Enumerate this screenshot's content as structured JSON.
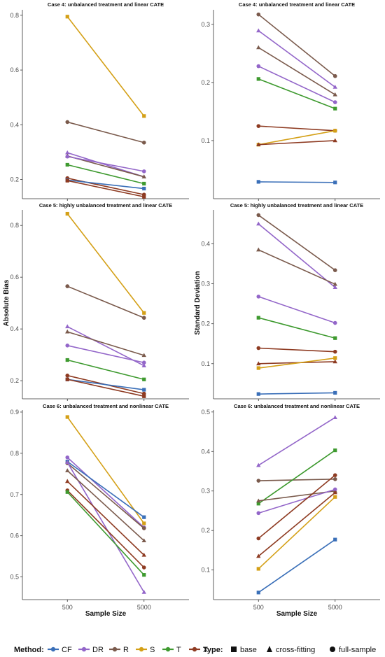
{
  "legend": {
    "method_title": "Method:",
    "type_title": "Type:",
    "methods": [
      {
        "name": "CF",
        "color": "#3a6fb8"
      },
      {
        "name": "DR",
        "color": "#9366c9"
      },
      {
        "name": "R",
        "color": "#7a5a4c"
      },
      {
        "name": "S",
        "color": "#d4a017"
      },
      {
        "name": "T",
        "color": "#3e9a2f"
      },
      {
        "name": "X",
        "color": "#8e3b22"
      }
    ],
    "types": [
      {
        "name": "base",
        "shape": "square"
      },
      {
        "name": "cross-fitting",
        "shape": "triangle"
      },
      {
        "name": "full-sample",
        "shape": "circle"
      }
    ]
  },
  "axes": {
    "x_title": "Sample Size",
    "left_y_title": "Absolute Bias",
    "right_y_title": "Standard Deviation"
  },
  "chart_data": [
    {
      "type": "line",
      "title": "Case 4: unbalanced treatment and linear CATE",
      "xlabel": "",
      "ylabel": "",
      "x": [
        "500",
        "5000"
      ],
      "ylim": [
        0.13,
        0.82
      ],
      "yticks": [
        0.2,
        0.4,
        0.6,
        0.8
      ],
      "grid": false,
      "series": [
        {
          "method": "S",
          "type": "base",
          "values": [
            0.795,
            0.432
          ]
        },
        {
          "method": "R",
          "type": "full-sample",
          "values": [
            0.41,
            0.335
          ]
        },
        {
          "method": "DR",
          "type": "cross-fitting",
          "values": [
            0.298,
            0.21
          ]
        },
        {
          "method": "R",
          "type": "cross-fitting",
          "values": [
            0.286,
            0.21
          ]
        },
        {
          "method": "DR",
          "type": "full-sample",
          "values": [
            0.284,
            0.23
          ]
        },
        {
          "method": "T",
          "type": "base",
          "values": [
            0.254,
            0.185
          ]
        },
        {
          "method": "X",
          "type": "full-sample",
          "values": [
            0.205,
            0.145
          ]
        },
        {
          "method": "CF",
          "type": "base",
          "values": [
            0.198,
            0.167
          ]
        },
        {
          "method": "X",
          "type": "base",
          "values": [
            0.196,
            0.137
          ]
        }
      ]
    },
    {
      "type": "line",
      "title": "Case 4: unbalanced treatment and linear CATE",
      "xlabel": "",
      "ylabel": "",
      "x": [
        "500",
        "5000"
      ],
      "ylim": [
        0.0,
        0.325
      ],
      "yticks": [
        0.1,
        0.2,
        0.3
      ],
      "grid": false,
      "series": [
        {
          "method": "R",
          "type": "full-sample",
          "values": [
            0.317,
            0.211
          ]
        },
        {
          "method": "DR",
          "type": "cross-fitting",
          "values": [
            0.289,
            0.192
          ]
        },
        {
          "method": "R",
          "type": "cross-fitting",
          "values": [
            0.26,
            0.179
          ]
        },
        {
          "method": "DR",
          "type": "full-sample",
          "values": [
            0.228,
            0.166
          ]
        },
        {
          "method": "T",
          "type": "base",
          "values": [
            0.206,
            0.155
          ]
        },
        {
          "method": "X",
          "type": "full-sample",
          "values": [
            0.125,
            0.117
          ]
        },
        {
          "method": "S",
          "type": "base",
          "values": [
            0.093,
            0.117
          ]
        },
        {
          "method": "X",
          "type": "cross-fitting",
          "values": [
            0.093,
            0.1
          ]
        },
        {
          "method": "CF",
          "type": "base",
          "values": [
            0.029,
            0.028
          ]
        }
      ]
    },
    {
      "type": "line",
      "title": "Case 5: highly unbalanced treatment and linear CATE",
      "xlabel": "",
      "ylabel": "Absolute Bias",
      "x": [
        "500",
        "5000"
      ],
      "ylim": [
        0.13,
        0.86
      ],
      "yticks": [
        0.2,
        0.4,
        0.6,
        0.8
      ],
      "grid": false,
      "series": [
        {
          "method": "S",
          "type": "base",
          "values": [
            0.845,
            0.462
          ]
        },
        {
          "method": "R",
          "type": "full-sample",
          "values": [
            0.565,
            0.443
          ]
        },
        {
          "method": "DR",
          "type": "cross-fitting",
          "values": [
            0.409,
            0.258
          ]
        },
        {
          "method": "R",
          "type": "cross-fitting",
          "values": [
            0.389,
            0.298
          ]
        },
        {
          "method": "DR",
          "type": "full-sample",
          "values": [
            0.336,
            0.27
          ]
        },
        {
          "method": "T",
          "type": "base",
          "values": [
            0.28,
            0.205
          ]
        },
        {
          "method": "X",
          "type": "full-sample",
          "values": [
            0.22,
            0.15
          ]
        },
        {
          "method": "CF",
          "type": "base",
          "values": [
            0.205,
            0.165
          ]
        },
        {
          "method": "X",
          "type": "base",
          "values": [
            0.205,
            0.14
          ]
        }
      ]
    },
    {
      "type": "line",
      "title": "Case 5: highly unbalanced treatment and linear CATE",
      "xlabel": "",
      "ylabel": "Standard Deviation",
      "x": [
        "500",
        "5000"
      ],
      "ylim": [
        0.012,
        0.485
      ],
      "yticks": [
        0.1,
        0.2,
        0.3,
        0.4
      ],
      "grid": false,
      "series": [
        {
          "method": "R",
          "type": "full-sample",
          "values": [
            0.472,
            0.334
          ]
        },
        {
          "method": "DR",
          "type": "cross-fitting",
          "values": [
            0.45,
            0.291
          ]
        },
        {
          "method": "R",
          "type": "cross-fitting",
          "values": [
            0.385,
            0.299
          ]
        },
        {
          "method": "DR",
          "type": "full-sample",
          "values": [
            0.268,
            0.202
          ]
        },
        {
          "method": "T",
          "type": "base",
          "values": [
            0.215,
            0.164
          ]
        },
        {
          "method": "X",
          "type": "full-sample",
          "values": [
            0.139,
            0.13
          ]
        },
        {
          "method": "X",
          "type": "cross-fitting",
          "values": [
            0.1,
            0.105
          ]
        },
        {
          "method": "S",
          "type": "base",
          "values": [
            0.089,
            0.114
          ]
        },
        {
          "method": "CF",
          "type": "base",
          "values": [
            0.024,
            0.027
          ]
        }
      ]
    },
    {
      "type": "line",
      "title": "Case 6: unbalanced treatment and nonlinear CATE",
      "xlabel": "Sample Size",
      "ylabel": "",
      "x": [
        "500",
        "5000"
      ],
      "ylim": [
        0.445,
        0.905
      ],
      "yticks": [
        0.5,
        0.6,
        0.7,
        0.8,
        0.9
      ],
      "grid": false,
      "series": [
        {
          "method": "S",
          "type": "base",
          "values": [
            0.888,
            0.63
          ]
        },
        {
          "method": "DR",
          "type": "full-sample",
          "values": [
            0.79,
            0.62
          ]
        },
        {
          "method": "CF",
          "type": "base",
          "values": [
            0.78,
            0.645
          ]
        },
        {
          "method": "R",
          "type": "full-sample",
          "values": [
            0.776,
            0.618
          ]
        },
        {
          "method": "DR",
          "type": "cross-fitting",
          "values": [
            0.778,
            0.463
          ]
        },
        {
          "method": "R",
          "type": "cross-fitting",
          "values": [
            0.758,
            0.588
          ]
        },
        {
          "method": "X",
          "type": "cross-fitting",
          "values": [
            0.732,
            0.553
          ]
        },
        {
          "method": "X",
          "type": "full-sample",
          "values": [
            0.71,
            0.523
          ]
        },
        {
          "method": "T",
          "type": "base",
          "values": [
            0.706,
            0.505
          ]
        }
      ]
    },
    {
      "type": "line",
      "title": "Case 6: unbalanced treatment and nonlinear CATE",
      "xlabel": "Sample Size",
      "ylabel": "",
      "x": [
        "500",
        "5000"
      ],
      "ylim": [
        0.025,
        0.505
      ],
      "yticks": [
        0.1,
        0.2,
        0.3,
        0.4,
        0.5
      ],
      "grid": false,
      "series": [
        {
          "method": "DR",
          "type": "cross-fitting",
          "values": [
            0.365,
            0.486
          ]
        },
        {
          "method": "R",
          "type": "full-sample",
          "values": [
            0.326,
            0.33
          ]
        },
        {
          "method": "T",
          "type": "base",
          "values": [
            0.268,
            0.403
          ]
        },
        {
          "method": "R",
          "type": "cross-fitting",
          "values": [
            0.275,
            0.3
          ]
        },
        {
          "method": "DR",
          "type": "full-sample",
          "values": [
            0.244,
            0.304
          ]
        },
        {
          "method": "X",
          "type": "full-sample",
          "values": [
            0.18,
            0.34
          ]
        },
        {
          "method": "X",
          "type": "cross-fitting",
          "values": [
            0.135,
            0.296
          ]
        },
        {
          "method": "S",
          "type": "base",
          "values": [
            0.103,
            0.285
          ]
        },
        {
          "method": "CF",
          "type": "base",
          "values": [
            0.043,
            0.177
          ]
        }
      ]
    }
  ]
}
